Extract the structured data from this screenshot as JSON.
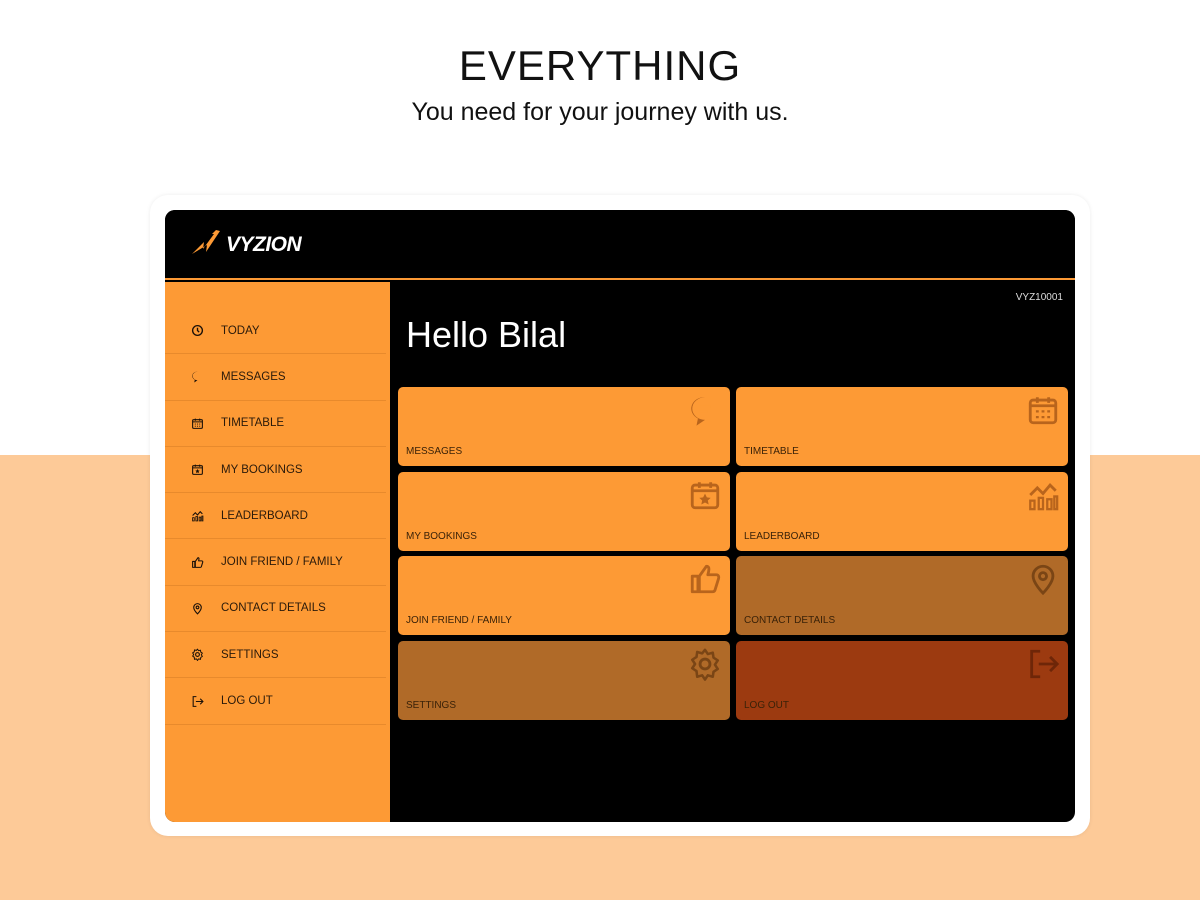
{
  "hero": {
    "title": "EVERYTHING",
    "subtitle": "You need for your journey with us."
  },
  "app": {
    "brand": "VYZION",
    "user_id": "VYZ10001",
    "greeting": "Hello Bilal",
    "colors": {
      "accent": "#fd9a35",
      "muted": "#b06a28",
      "danger": "#9c3a10",
      "background": "#000000"
    },
    "sidebar": {
      "items": [
        {
          "label": "TODAY",
          "icon": "clock-icon"
        },
        {
          "label": "MESSAGES",
          "icon": "chat-icon"
        },
        {
          "label": "TIMETABLE",
          "icon": "calendar-icon"
        },
        {
          "label": "MY BOOKINGS",
          "icon": "calendar-star-icon"
        },
        {
          "label": "LEADERBOARD",
          "icon": "leaderboard-icon"
        },
        {
          "label": "JOIN FRIEND / FAMILY",
          "icon": "thumbs-up-icon"
        },
        {
          "label": "CONTACT DETAILS",
          "icon": "location-pin-icon"
        },
        {
          "label": "SETTINGS",
          "icon": "gear-icon"
        },
        {
          "label": "LOG OUT",
          "icon": "logout-icon"
        }
      ]
    },
    "tiles": [
      {
        "label": "MESSAGES",
        "icon": "chat-icon",
        "color": "#fd9a35"
      },
      {
        "label": "TIMETABLE",
        "icon": "calendar-icon",
        "color": "#fd9a35"
      },
      {
        "label": "MY BOOKINGS",
        "icon": "calendar-star-icon",
        "color": "#fd9a35"
      },
      {
        "label": "LEADERBOARD",
        "icon": "leaderboard-icon",
        "color": "#fd9a35"
      },
      {
        "label": "JOIN FRIEND / FAMILY",
        "icon": "thumbs-up-icon",
        "color": "#fd9a35"
      },
      {
        "label": "CONTACT DETAILS",
        "icon": "location-pin-icon",
        "color": "#b06a28"
      },
      {
        "label": "SETTINGS",
        "icon": "gear-icon",
        "color": "#b06a28"
      },
      {
        "label": "LOG OUT",
        "icon": "logout-icon",
        "color": "#9c3a10"
      }
    ]
  }
}
